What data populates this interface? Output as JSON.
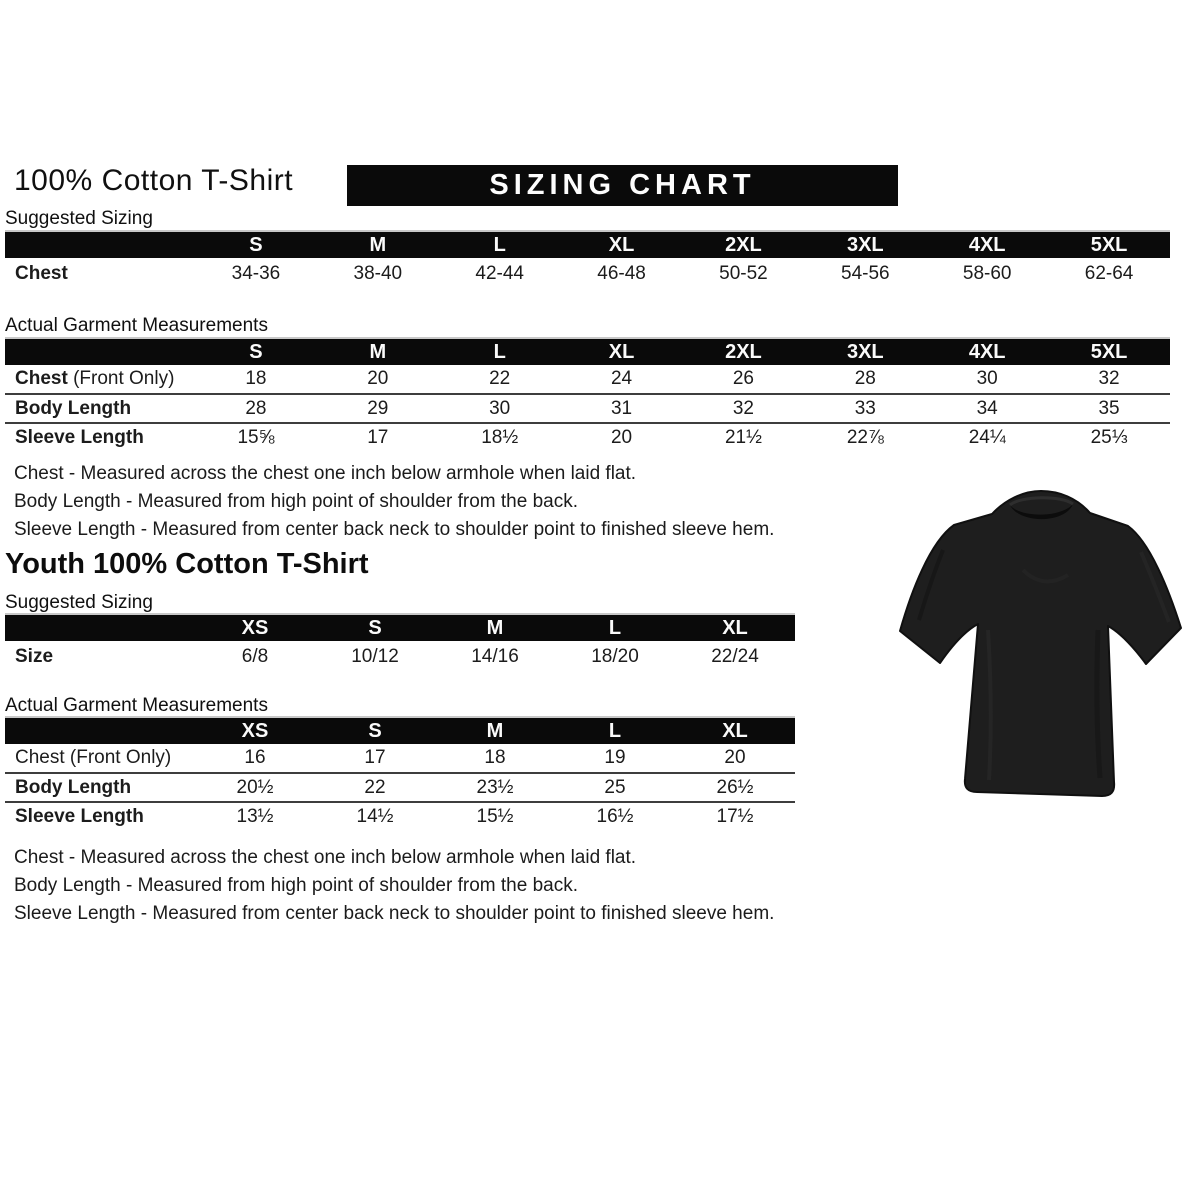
{
  "header": {
    "title": "100% Cotton T-Shirt",
    "banner": "SIZING CHART"
  },
  "adult": {
    "suggested_label": "Suggested Sizing",
    "suggested_table": {
      "columns": [
        "",
        "S",
        "M",
        "L",
        "XL",
        "2XL",
        "3XL",
        "4XL",
        "5XL"
      ],
      "rows": [
        {
          "label": "Chest",
          "values": [
            "34-36",
            "38-40",
            "42-44",
            "46-48",
            "50-52",
            "54-56",
            "58-60",
            "62-64"
          ]
        }
      ]
    },
    "actual_label": "Actual Garment Measurements",
    "actual_table": {
      "columns": [
        "",
        "S",
        "M",
        "L",
        "XL",
        "2XL",
        "3XL",
        "4XL",
        "5XL"
      ],
      "rows": [
        {
          "label": "Chest",
          "suffix": " (Front Only)",
          "values": [
            "18",
            "20",
            "22",
            "24",
            "26",
            "28",
            "30",
            "32"
          ]
        },
        {
          "label": "Body Length",
          "values": [
            "28",
            "29",
            "30",
            "31",
            "32",
            "33",
            "34",
            "35"
          ]
        },
        {
          "label": "Sleeve Length",
          "values": [
            "15⅝",
            "17",
            "18½",
            "20",
            "21½",
            "22⅞",
            "24¼",
            "25⅓"
          ]
        }
      ]
    },
    "notes": [
      "Chest - Measured across the chest one inch below armhole when laid flat.",
      "Body Length - Measured from high point of shoulder from the back.",
      "Sleeve Length - Measured from center back neck to shoulder point to finished sleeve hem."
    ]
  },
  "youth": {
    "title": "Youth 100% Cotton T-Shirt",
    "suggested_label": "Suggested Sizing",
    "suggested_table": {
      "columns": [
        "",
        "XS",
        "S",
        "M",
        "L",
        "XL"
      ],
      "rows": [
        {
          "label": "Size",
          "values": [
            "6/8",
            "10/12",
            "14/16",
            "18/20",
            "22/24"
          ]
        }
      ]
    },
    "actual_label": "Actual Garment Measurements",
    "actual_table": {
      "columns": [
        "",
        "XS",
        "S",
        "M",
        "L",
        "XL"
      ],
      "rows": [
        {
          "label": "Chest (Front Only)",
          "bold": false,
          "values": [
            "16",
            "17",
            "18",
            "19",
            "20"
          ]
        },
        {
          "label": "Body Length",
          "values": [
            "20½",
            "22",
            "23½",
            "25",
            "26½"
          ]
        },
        {
          "label": "Sleeve Length",
          "values": [
            "13½",
            "14½",
            "15½",
            "16½",
            "17½"
          ]
        }
      ]
    },
    "notes": [
      "Chest - Measured across the chest one inch below armhole when laid flat.",
      "Body Length - Measured from high point of shoulder from the back.",
      "Sleeve Length - Measured from center back neck to shoulder point to finished sleeve hem."
    ]
  },
  "image": {
    "description": "Black short-sleeve crew neck t-shirt",
    "shirt_color": "#1e1e1e"
  }
}
